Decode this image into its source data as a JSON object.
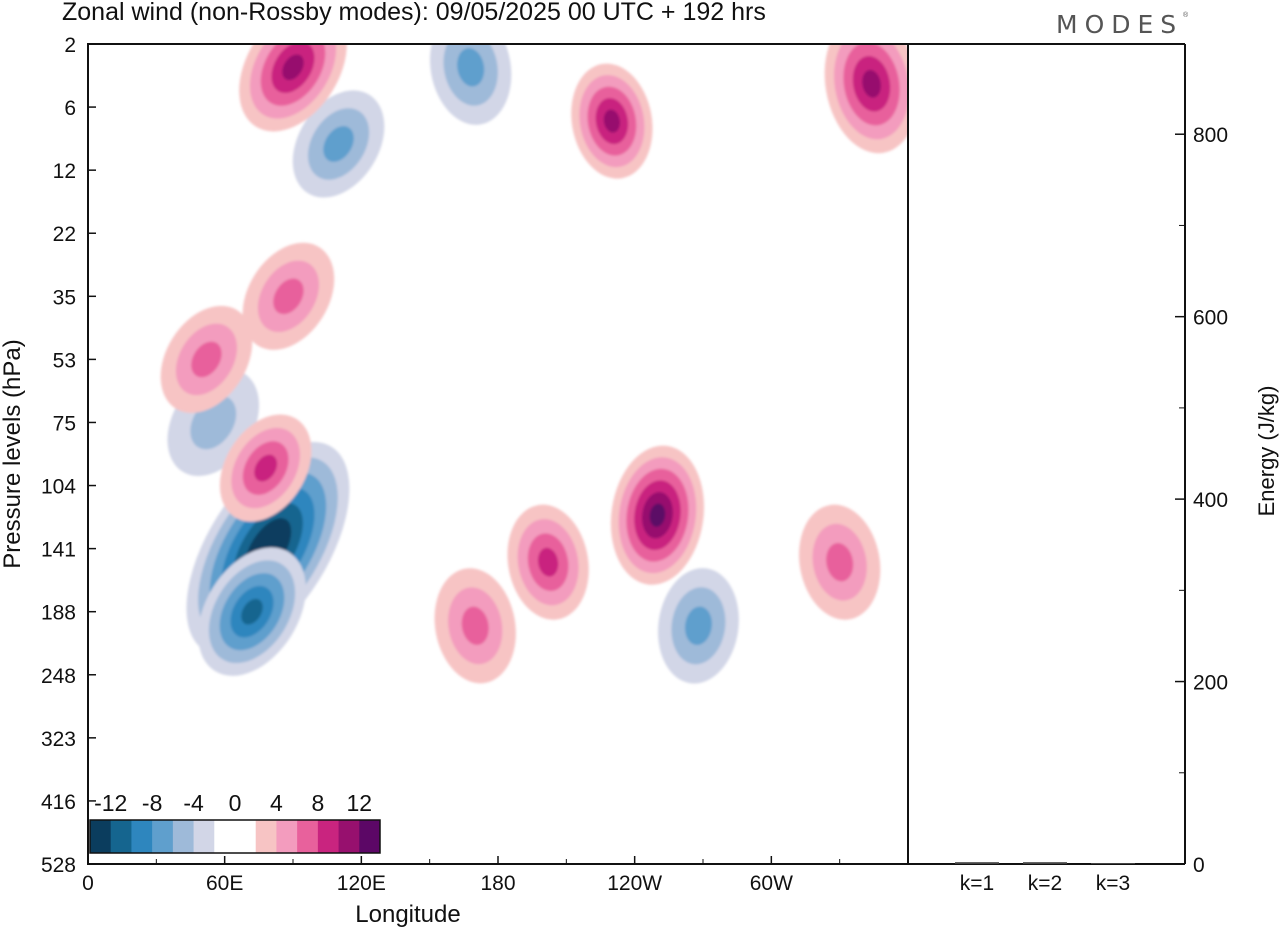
{
  "title": "Zonal wind (non-Rossby modes):  09/05/2025  00 UTC  + 192 hrs",
  "logo": "MODES",
  "logo_mark": "®",
  "chart_data": [
    {
      "type": "heatmap",
      "title": "Zonal wind (non-Rossby modes):  09/05/2025  00 UTC  + 192 hrs",
      "xlabel": "Longitude",
      "ylabel": "Pressure levels (hPa)",
      "x_ticks": [
        "0",
        "60E",
        "120E",
        "180",
        "120W",
        "60W"
      ],
      "x_tick_values": [
        0,
        60,
        120,
        180,
        240,
        300
      ],
      "xlim": [
        0,
        360
      ],
      "y_ticks": [
        "2",
        "6",
        "12",
        "22",
        "35",
        "53",
        "75",
        "104",
        "141",
        "188",
        "248",
        "323",
        "416",
        "528"
      ],
      "y_scale": "log-pressure (levels equally spaced)",
      "colorbar": {
        "labels": [
          "-12",
          "-8",
          "-4",
          "0",
          "4",
          "8",
          "12"
        ],
        "label_values": [
          -12,
          -8,
          -4,
          0,
          4,
          8,
          12
        ],
        "colors": [
          "#0b3d5e",
          "#15658f",
          "#2e86be",
          "#5f9fcd",
          "#9ebad9",
          "#d2d6e7",
          "#ffffff",
          "#ffffff",
          "#f7c4c4",
          "#f39cbe",
          "#e8619c",
          "#c9247f",
          "#97106e",
          "#5c0766"
        ]
      },
      "features": [
        {
          "sign": "negative",
          "lon": 79,
          "level_hPa": 141,
          "value": -14
        },
        {
          "sign": "negative",
          "lon": 72,
          "level_hPa": 188,
          "value": -10
        },
        {
          "sign": "negative",
          "lon": 268,
          "level_hPa": 200,
          "value": -5
        },
        {
          "sign": "negative",
          "lon": 168,
          "level_hPa": 3,
          "value": -6
        },
        {
          "sign": "negative",
          "lon": 110,
          "level_hPa": 9,
          "value": -5
        },
        {
          "sign": "negative",
          "lon": 55,
          "level_hPa": 75,
          "value": -4
        },
        {
          "sign": "positive",
          "lon": 202,
          "level_hPa": 150,
          "value": 7
        },
        {
          "sign": "positive",
          "lon": 250,
          "level_hPa": 120,
          "value": 11
        },
        {
          "sign": "positive",
          "lon": 78,
          "level_hPa": 95,
          "value": 8
        },
        {
          "sign": "positive",
          "lon": 230,
          "level_hPa": 7,
          "value": 9
        },
        {
          "sign": "positive",
          "lon": 90,
          "level_hPa": 3,
          "value": 10
        },
        {
          "sign": "positive",
          "lon": 344,
          "level_hPa": 4,
          "value": 10
        },
        {
          "sign": "positive",
          "lon": 330,
          "level_hPa": 150,
          "value": 6
        },
        {
          "sign": "positive",
          "lon": 52,
          "level_hPa": 53,
          "value": 6
        },
        {
          "sign": "positive",
          "lon": 88,
          "level_hPa": 35,
          "value": 5
        },
        {
          "sign": "positive",
          "lon": 170,
          "level_hPa": 200,
          "value": 5
        }
      ]
    },
    {
      "type": "bar",
      "ylabel": "Energy (J/kg)",
      "categories": [
        "k=1",
        "k=2",
        "k=3"
      ],
      "values": [
        2,
        2,
        1
      ],
      "ylim": [
        0,
        900
      ],
      "y_ticks": [
        0,
        200,
        400,
        600,
        800
      ]
    }
  ]
}
